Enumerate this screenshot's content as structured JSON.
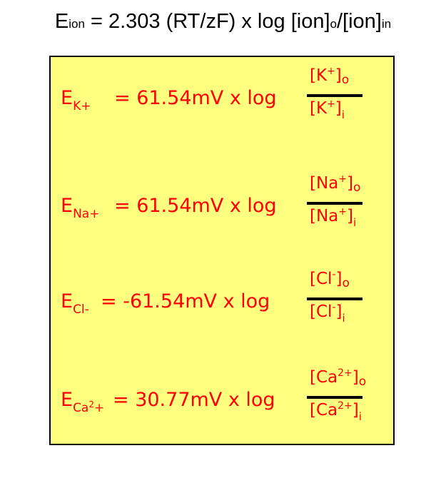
{
  "title": {
    "e": "E",
    "ion_sub": "ion",
    "middle": " = 2.303 (RT/zF) x log [ion]",
    "o_sub": "o",
    "slash": "/[ion]",
    "in_sub": "in"
  },
  "colors": {
    "box_bg": "#ffff80",
    "text": "#ff0000",
    "bar": "#000000"
  },
  "rows": [
    {
      "e": "E",
      "sub": "K",
      "sub_sup": "",
      "sub_tail": "+",
      "eq": "= 61.54mV x log",
      "num": {
        "pre": "[K",
        "sup": "+",
        "post": "]",
        "sub": "o"
      },
      "den": {
        "pre": "[K",
        "sup": "+",
        "post": "]",
        "sub": "i"
      }
    },
    {
      "e": "E",
      "sub": "Na",
      "sub_sup": "",
      "sub_tail": "+",
      "eq": "= 61.54mV x log",
      "num": {
        "pre": "[Na",
        "sup": "+",
        "post": "]",
        "sub": "o"
      },
      "den": {
        "pre": "[Na",
        "sup": "+",
        "post": "]",
        "sub": "i"
      }
    },
    {
      "e": "E",
      "sub": "Cl",
      "sub_sup": "",
      "sub_tail": "-",
      "eq": "= -61.54mV x log",
      "num": {
        "pre": "[Cl",
        "sup": "-",
        "post": "]",
        "sub": "o"
      },
      "den": {
        "pre": "[Cl",
        "sup": "-",
        "post": "]",
        "sub": "i"
      }
    },
    {
      "e": "E",
      "sub": "Ca",
      "sub_sup": "2",
      "sub_tail": "+",
      "eq": "= 30.77mV x log",
      "num": {
        "pre": "[Ca",
        "sup": "2+",
        "post": "]",
        "sub": "o"
      },
      "den": {
        "pre": "[Ca",
        "sup": "2+",
        "post": "]",
        "sub": "i"
      }
    }
  ]
}
